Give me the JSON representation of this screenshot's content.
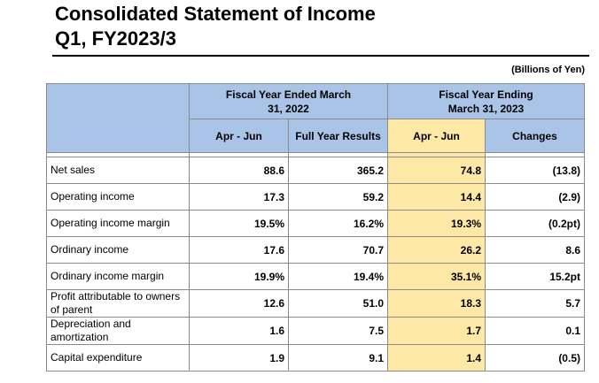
{
  "title": {
    "line1": "Consolidated Statement of Income",
    "line2": "Q1, FY2023/3"
  },
  "unit": "(Billions of Yen)",
  "header": {
    "fy2022": "Fiscal Year Ended March 31, 2022",
    "fy2023": "Fiscal Year Ending March 31, 2023",
    "cols": [
      "Apr - Jun",
      "Full Year Results",
      "Apr - Jun",
      "Changes"
    ]
  },
  "rows": [
    {
      "label": "Net sales",
      "values": [
        "88.6",
        "365.2",
        "74.8",
        "(13.8)"
      ]
    },
    {
      "label": "Operating income",
      "values": [
        "17.3",
        "59.2",
        "14.4",
        "(2.9)"
      ]
    },
    {
      "label": "Operating income margin",
      "values": [
        "19.5%",
        "16.2%",
        "19.3%",
        "(0.2pt)"
      ]
    },
    {
      "label": "Ordinary income",
      "values": [
        "17.6",
        "70.7",
        "26.2",
        "8.6"
      ]
    },
    {
      "label": "Ordinary income margin",
      "values": [
        "19.9%",
        "19.4%",
        "35.1%",
        "15.2pt"
      ]
    },
    {
      "label": "Profit attributable to owners of parent",
      "values": [
        "12.6",
        "51.0",
        "18.3",
        "5.7"
      ]
    },
    {
      "label": "Depreciation and amortization",
      "values": [
        "1.6",
        "7.5",
        "1.7",
        "0.1"
      ]
    },
    {
      "label": "Capital expenditure",
      "values": [
        "1.9",
        "9.1",
        "1.4",
        "(0.5)"
      ]
    }
  ],
  "colors": {
    "header_blue": "#a9c4e6",
    "highlight_yellow": "#fde8a6"
  }
}
